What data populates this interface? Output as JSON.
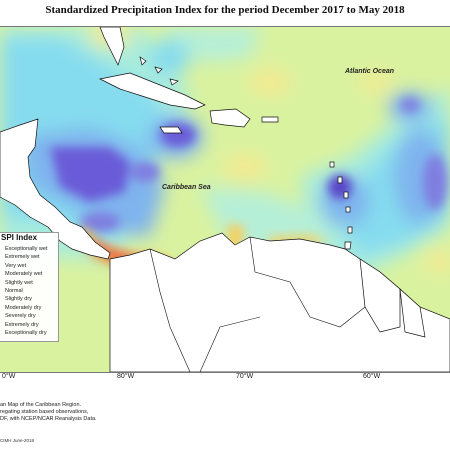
{
  "title": "Standardized Precipitation Index for the period December 2017 to May 2018",
  "labels": {
    "ocean": "Atlantic Ocean",
    "sea": "Caribbean Sea"
  },
  "legend": {
    "title": "SPI Index",
    "items": [
      {
        "label": "Exceptionally wet",
        "color": "#6a3fc8"
      },
      {
        "label": "Extremely wet",
        "color": "#7f7ee0"
      },
      {
        "label": "Very wet",
        "color": "#7fb4ee"
      },
      {
        "label": "Moderately wet",
        "color": "#86dcef"
      },
      {
        "label": "Slightly wet",
        "color": "#b6efd8"
      },
      {
        "label": "Normal",
        "color": "#d9f2a0"
      },
      {
        "label": "Slightly dry",
        "color": "#f3ea92"
      },
      {
        "label": "Moderately dry",
        "color": "#f6cf5e"
      },
      {
        "label": "Severely dry",
        "color": "#f4a746"
      },
      {
        "label": "Extremely dry",
        "color": "#e8664a"
      },
      {
        "label": "Exceptionally dry",
        "color": "#c93a3a"
      }
    ]
  },
  "axis": {
    "lon_labels": [
      "0°W",
      "80°W",
      "70°W",
      "60°W"
    ]
  },
  "credits": {
    "lines": [
      "an Map of the Caribbean Region.",
      "regating station based observations,",
      "DF, with NCEP/NCAR Reanalysis Data."
    ],
    "made_by": "CIMH June-2018"
  }
}
